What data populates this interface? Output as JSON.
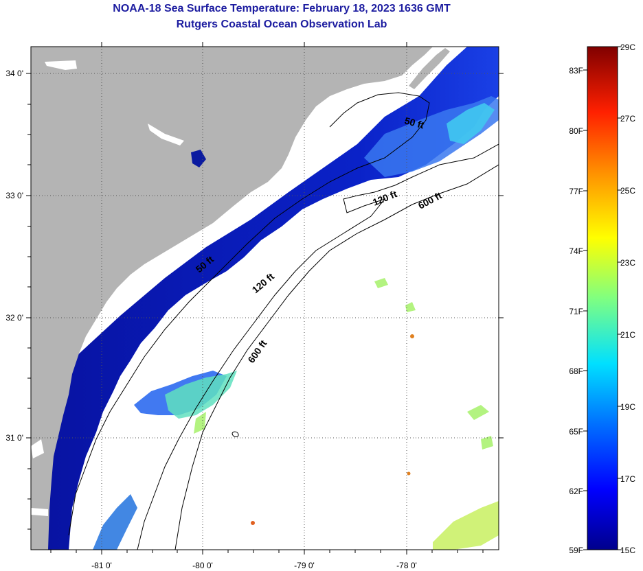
{
  "title_line1": "NOAA-18 Sea Surface Temperature:  February 18, 2023 1636 GMT",
  "title_line2": "Rutgers Coastal Ocean Observation Lab",
  "lat_labels": [
    "34 0'",
    "33 0'",
    "32 0'",
    "31 0'"
  ],
  "lon_labels": [
    "-81 0'",
    "-80 0'",
    "-79 0'",
    "-78 0'"
  ],
  "contour_labels": [
    "50 ft",
    "120 ft",
    "600 ft",
    "50 ft",
    "120 ft",
    "600 ft"
  ],
  "colorbar": {
    "celsius": [
      "29C",
      "27C",
      "25C",
      "23C",
      "21C",
      "19C",
      "17C",
      "15C"
    ],
    "fahrenheit": [
      "83F",
      "80F",
      "77F",
      "74F",
      "71F",
      "68F",
      "65F",
      "62F",
      "59F"
    ]
  },
  "colors": {
    "land": "#b4b4b4",
    "ocean_cold": "#0a1aa0",
    "ocean_mid": "#1e5af0",
    "cloud": "#ffffff",
    "title": "#1c1ca0"
  }
}
